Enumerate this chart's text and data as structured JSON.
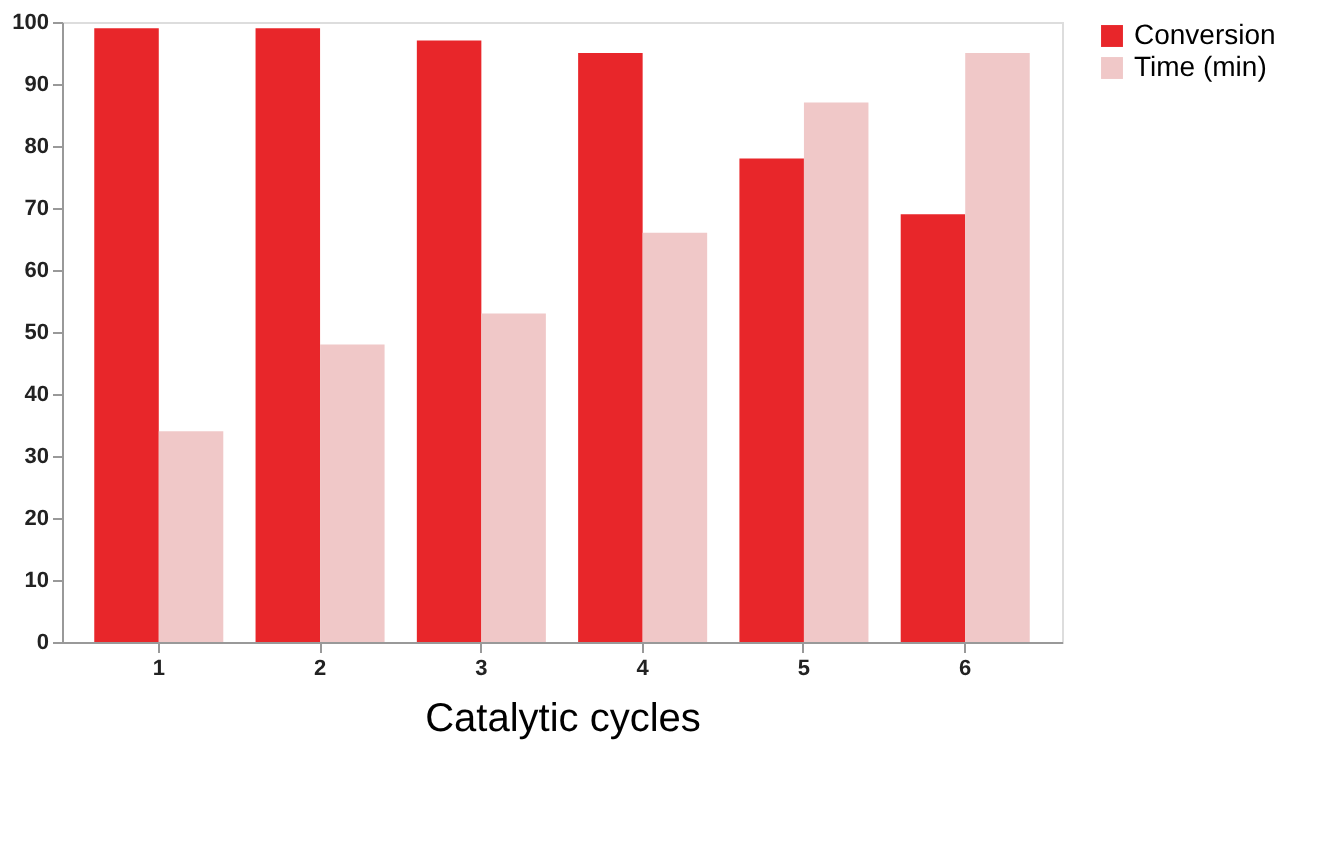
{
  "chart_data": {
    "type": "bar",
    "xlabel": "Catalytic cycles",
    "categories": [
      "1",
      "2",
      "3",
      "4",
      "5",
      "6"
    ],
    "series": [
      {
        "name": "Conversion",
        "color": "#e8262a",
        "values": [
          99,
          99,
          97,
          95,
          78,
          69
        ]
      },
      {
        "name": "Time (min)",
        "color": "#f0c8c8",
        "values": [
          34,
          48,
          53,
          66,
          87,
          95
        ]
      }
    ],
    "ylim": [
      0,
      100
    ],
    "yticks": [
      0,
      10,
      20,
      30,
      40,
      50,
      60,
      70,
      80,
      90,
      100
    ],
    "grid": false,
    "legend": "right"
  }
}
